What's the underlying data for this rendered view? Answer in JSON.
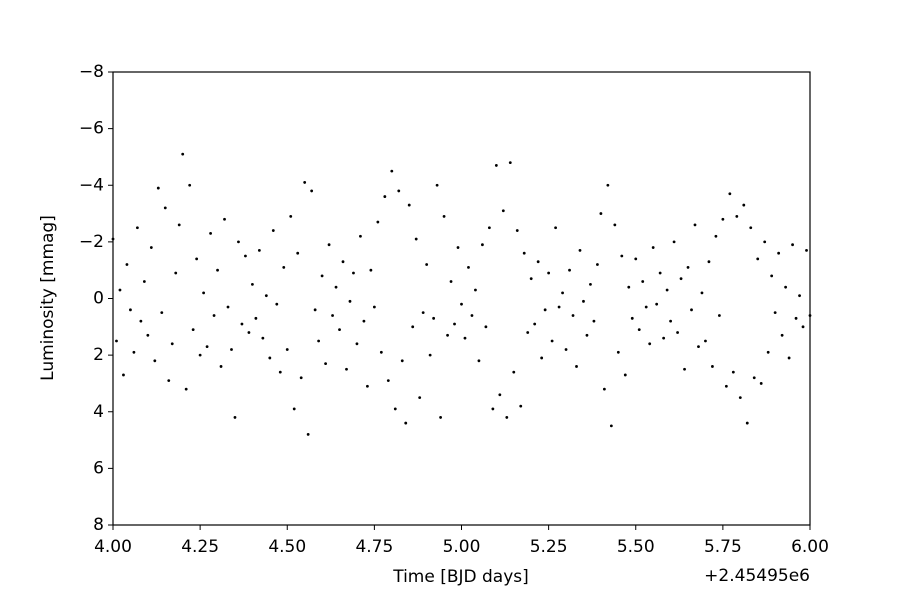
{
  "chart_data": {
    "type": "scatter",
    "x_label": "Time [BJD days]",
    "y_label": "Luminosity [mmag]",
    "x_offset_label": "+2.45495e6",
    "color": "#000000",
    "xlim": [
      4.0,
      6.0
    ],
    "ylim": [
      8,
      -8
    ],
    "xticks": [
      {
        "value": 4.0,
        "label": "4.00"
      },
      {
        "value": 4.25,
        "label": "4.25"
      },
      {
        "value": 4.5,
        "label": "4.50"
      },
      {
        "value": 4.75,
        "label": "4.75"
      },
      {
        "value": 5.0,
        "label": "5.00"
      },
      {
        "value": 5.25,
        "label": "5.25"
      },
      {
        "value": 5.5,
        "label": "5.50"
      },
      {
        "value": 5.75,
        "label": "5.75"
      },
      {
        "value": 6.0,
        "label": "6.00"
      }
    ],
    "yticks": [
      {
        "value": -8,
        "label": "−8"
      },
      {
        "value": -6,
        "label": "−6"
      },
      {
        "value": -4,
        "label": "−4"
      },
      {
        "value": -2,
        "label": "−2"
      },
      0,
      2,
      4,
      6,
      8
    ],
    "x": [
      4.0,
      4.01,
      4.02,
      4.03,
      4.04,
      4.05,
      4.06,
      4.07,
      4.08,
      4.09,
      4.1,
      4.11,
      4.12,
      4.13,
      4.14,
      4.15,
      4.16,
      4.17,
      4.18,
      4.19,
      4.2,
      4.21,
      4.22,
      4.23,
      4.24,
      4.25,
      4.26,
      4.27,
      4.28,
      4.29,
      4.3,
      4.31,
      4.32,
      4.33,
      4.34,
      4.35,
      4.36,
      4.37,
      4.38,
      4.39,
      4.4,
      4.41,
      4.42,
      4.43,
      4.44,
      4.45,
      4.46,
      4.47,
      4.48,
      4.49,
      4.5,
      4.51,
      4.52,
      4.53,
      4.54,
      4.55,
      4.56,
      4.57,
      4.58,
      4.59,
      4.6,
      4.61,
      4.62,
      4.63,
      4.64,
      4.65,
      4.66,
      4.67,
      4.68,
      4.69,
      4.7,
      4.71,
      4.72,
      4.73,
      4.74,
      4.75,
      4.76,
      4.77,
      4.78,
      4.79,
      4.8,
      4.81,
      4.82,
      4.83,
      4.84,
      4.85,
      4.86,
      4.87,
      4.88,
      4.89,
      4.9,
      4.91,
      4.92,
      4.93,
      4.94,
      4.95,
      4.96,
      4.97,
      4.98,
      4.99,
      5.0,
      5.01,
      5.02,
      5.03,
      5.04,
      5.05,
      5.06,
      5.07,
      5.08,
      5.09,
      5.1,
      5.11,
      5.12,
      5.13,
      5.14,
      5.15,
      5.16,
      5.17,
      5.18,
      5.19,
      5.2,
      5.21,
      5.22,
      5.23,
      5.24,
      5.25,
      5.26,
      5.27,
      5.28,
      5.29,
      5.3,
      5.31,
      5.32,
      5.33,
      5.34,
      5.35,
      5.36,
      5.37,
      5.38,
      5.39,
      5.4,
      5.41,
      5.42,
      5.43,
      5.44,
      5.45,
      5.46,
      5.47,
      5.48,
      5.49,
      5.5,
      5.51,
      5.52,
      5.53,
      5.54,
      5.55,
      5.56,
      5.57,
      5.58,
      5.59,
      5.6,
      5.61,
      5.62,
      5.63,
      5.64,
      5.65,
      5.66,
      5.67,
      5.68,
      5.69,
      5.7,
      5.71,
      5.72,
      5.73,
      5.74,
      5.75,
      5.76,
      5.77,
      5.78,
      5.79,
      5.8,
      5.81,
      5.82,
      5.83,
      5.84,
      5.85,
      5.86,
      5.87,
      5.88,
      5.89,
      5.9,
      5.91,
      5.92,
      5.93,
      5.94,
      5.95,
      5.96,
      5.97,
      5.98,
      5.99,
      6.0
    ],
    "values": [
      -2.1,
      1.5,
      -0.3,
      2.7,
      -1.2,
      0.4,
      1.9,
      -2.5,
      0.8,
      -0.6,
      1.3,
      -1.8,
      2.2,
      -3.9,
      0.5,
      -3.2,
      2.9,
      1.6,
      -0.9,
      -2.6,
      -5.1,
      3.2,
      -4.0,
      1.1,
      -1.4,
      2.0,
      -0.2,
      1.7,
      -2.3,
      0.6,
      -1.0,
      2.4,
      -2.8,
      0.3,
      1.8,
      4.2,
      -2.0,
      0.9,
      -1.5,
      1.2,
      -0.5,
      0.7,
      -1.7,
      1.4,
      -0.1,
      2.1,
      -2.4,
      0.2,
      2.6,
      -1.1,
      1.8,
      -2.9,
      3.9,
      -1.6,
      2.8,
      -4.1,
      4.8,
      -3.8,
      0.4,
      1.5,
      -0.8,
      2.3,
      -1.9,
      0.6,
      -0.4,
      1.1,
      -1.3,
      2.5,
      0.1,
      -0.9,
      1.6,
      -2.2,
      0.8,
      3.1,
      -1.0,
      0.3,
      -2.7,
      1.9,
      -3.6,
      2.9,
      -4.5,
      3.9,
      -3.8,
      2.2,
      4.4,
      -3.3,
      1.0,
      -2.1,
      3.5,
      0.5,
      -1.2,
      2.0,
      0.7,
      -4.0,
      4.2,
      -2.9,
      1.3,
      -0.6,
      0.9,
      -1.8,
      0.2,
      1.4,
      -1.1,
      0.6,
      -0.3,
      2.2,
      -1.9,
      1.0,
      -2.5,
      3.9,
      -4.7,
      3.4,
      -3.1,
      4.2,
      -4.8,
      2.6,
      -2.4,
      3.8,
      -1.6,
      1.2,
      -0.7,
      0.9,
      -1.3,
      2.1,
      0.4,
      -0.9,
      1.5,
      -2.5,
      0.3,
      -0.2,
      1.8,
      -1.0,
      0.6,
      2.4,
      -1.7,
      0.1,
      1.3,
      -0.5,
      0.8,
      -1.2,
      -3.0,
      3.2,
      -4.0,
      4.5,
      -2.6,
      1.9,
      -1.5,
      2.7,
      -0.4,
      0.7,
      -1.4,
      1.1,
      -0.6,
      0.3,
      1.6,
      -1.8,
      0.2,
      -0.9,
      1.4,
      -0.3,
      0.8,
      -2.0,
      1.2,
      -0.7,
      2.5,
      -1.1,
      0.4,
      -2.6,
      1.7,
      -0.2,
      1.5,
      -1.3,
      2.4,
      -2.2,
      0.6,
      -2.8,
      3.1,
      -3.7,
      2.6,
      -2.9,
      3.5,
      -3.3,
      4.4,
      -2.5,
      2.8,
      -1.4,
      3.0,
      -2.0,
      1.9,
      -0.8,
      0.5,
      -1.6,
      1.3,
      -0.4,
      2.1,
      -1.9,
      0.7,
      -0.1,
      1.0,
      -1.7,
      0.6
    ]
  }
}
